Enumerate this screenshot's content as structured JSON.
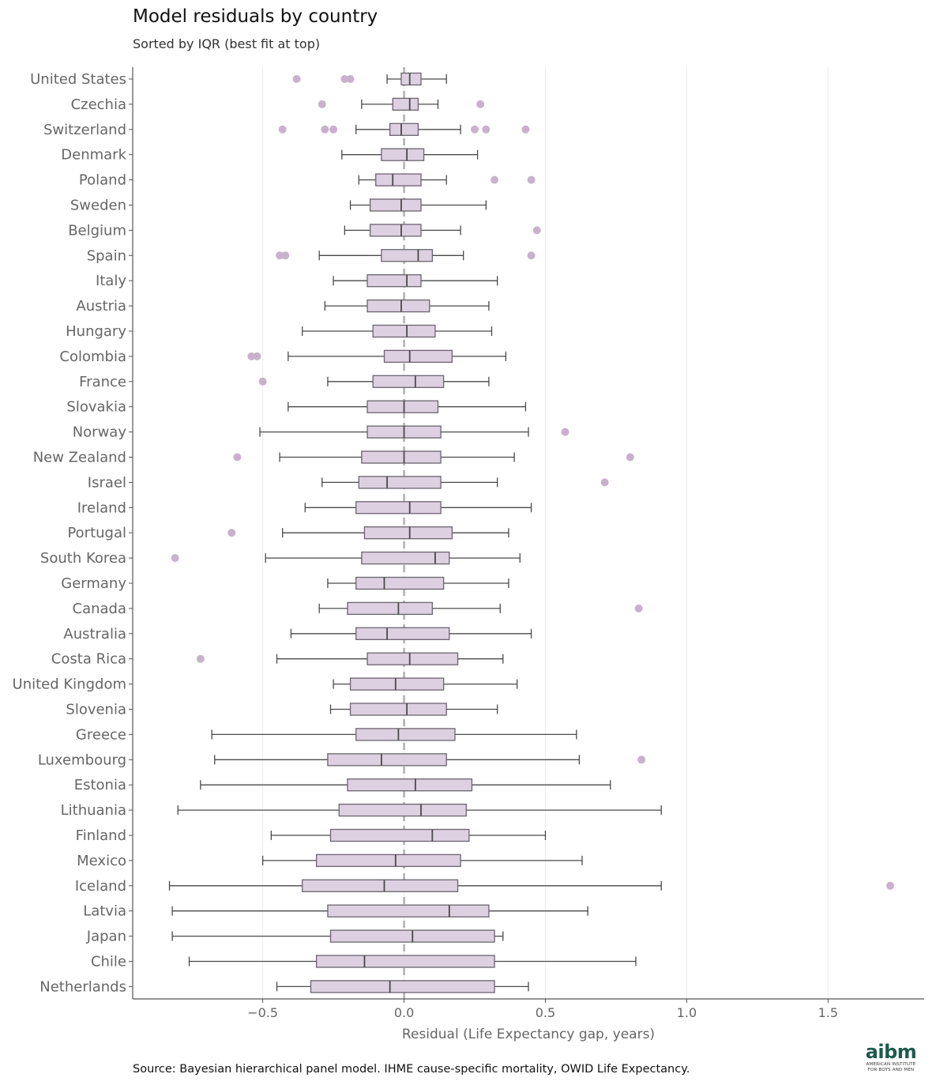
{
  "title": "Model residuals by country",
  "subtitle": "Sorted by IQR (best fit at top)",
  "source": "Source: Bayesian hierarchical panel model. IHME cause-specific mortality, OWID Life Expectancy.",
  "logo": {
    "main": "aibm",
    "line1": "AMERICAN INSTITUTE",
    "line2": "FOR BOYS AND MEN"
  },
  "colors": {
    "box_fill": "#ddd0e0",
    "box_stroke": "#6b6470",
    "outlier": "#c9b1cd",
    "zero_line": "#b0b0b0",
    "grid": "#ececec",
    "axis": "#555555",
    "label": "#666666"
  },
  "chart_data": {
    "type": "box",
    "orientation": "horizontal",
    "xlabel": "Residual (Life Expectancy gap, years)",
    "xlim": [
      -0.96,
      1.84
    ],
    "xticks": [
      -0.5,
      0.0,
      0.5,
      1.0,
      1.5
    ],
    "xtick_labels": [
      "−0.5",
      "0.0",
      "0.5",
      "1.0",
      "1.5"
    ],
    "reference_line": 0,
    "grid": "vertical",
    "series": [
      {
        "country": "United States",
        "whisker_low": -0.06,
        "q1": -0.01,
        "median": 0.02,
        "q3": 0.06,
        "whisker_high": 0.15,
        "outliers": [
          -0.38,
          -0.21,
          -0.19
        ]
      },
      {
        "country": "Czechia",
        "whisker_low": -0.15,
        "q1": -0.04,
        "median": 0.02,
        "q3": 0.05,
        "whisker_high": 0.12,
        "outliers": [
          -0.29,
          0.27
        ]
      },
      {
        "country": "Switzerland",
        "whisker_low": -0.17,
        "q1": -0.05,
        "median": -0.01,
        "q3": 0.05,
        "whisker_high": 0.2,
        "outliers": [
          -0.43,
          -0.28,
          -0.25,
          0.25,
          0.29,
          0.43
        ]
      },
      {
        "country": "Denmark",
        "whisker_low": -0.22,
        "q1": -0.08,
        "median": 0.01,
        "q3": 0.07,
        "whisker_high": 0.26,
        "outliers": []
      },
      {
        "country": "Poland",
        "whisker_low": -0.16,
        "q1": -0.1,
        "median": -0.04,
        "q3": 0.06,
        "whisker_high": 0.15,
        "outliers": [
          0.32,
          0.45
        ]
      },
      {
        "country": "Sweden",
        "whisker_low": -0.19,
        "q1": -0.12,
        "median": -0.01,
        "q3": 0.06,
        "whisker_high": 0.29,
        "outliers": []
      },
      {
        "country": "Belgium",
        "whisker_low": -0.21,
        "q1": -0.12,
        "median": -0.01,
        "q3": 0.06,
        "whisker_high": 0.2,
        "outliers": [
          0.47
        ]
      },
      {
        "country": "Spain",
        "whisker_low": -0.3,
        "q1": -0.08,
        "median": 0.05,
        "q3": 0.1,
        "whisker_high": 0.21,
        "outliers": [
          -0.44,
          -0.42,
          0.45
        ]
      },
      {
        "country": "Italy",
        "whisker_low": -0.25,
        "q1": -0.13,
        "median": 0.01,
        "q3": 0.06,
        "whisker_high": 0.33,
        "outliers": []
      },
      {
        "country": "Austria",
        "whisker_low": -0.28,
        "q1": -0.13,
        "median": -0.01,
        "q3": 0.09,
        "whisker_high": 0.3,
        "outliers": []
      },
      {
        "country": "Hungary",
        "whisker_low": -0.36,
        "q1": -0.11,
        "median": 0.01,
        "q3": 0.11,
        "whisker_high": 0.31,
        "outliers": []
      },
      {
        "country": "Colombia",
        "whisker_low": -0.41,
        "q1": -0.07,
        "median": 0.02,
        "q3": 0.17,
        "whisker_high": 0.36,
        "outliers": [
          -0.54,
          -0.52
        ]
      },
      {
        "country": "France",
        "whisker_low": -0.27,
        "q1": -0.11,
        "median": 0.04,
        "q3": 0.14,
        "whisker_high": 0.3,
        "outliers": [
          -0.5
        ]
      },
      {
        "country": "Slovakia",
        "whisker_low": -0.41,
        "q1": -0.13,
        "median": 0.0,
        "q3": 0.12,
        "whisker_high": 0.43,
        "outliers": []
      },
      {
        "country": "Norway",
        "whisker_low": -0.51,
        "q1": -0.13,
        "median": 0.0,
        "q3": 0.13,
        "whisker_high": 0.44,
        "outliers": [
          0.57
        ]
      },
      {
        "country": "New Zealand",
        "whisker_low": -0.44,
        "q1": -0.15,
        "median": 0.0,
        "q3": 0.13,
        "whisker_high": 0.39,
        "outliers": [
          -0.59,
          0.8
        ]
      },
      {
        "country": "Israel",
        "whisker_low": -0.29,
        "q1": -0.16,
        "median": -0.06,
        "q3": 0.13,
        "whisker_high": 0.33,
        "outliers": [
          0.71
        ]
      },
      {
        "country": "Ireland",
        "whisker_low": -0.35,
        "q1": -0.17,
        "median": 0.02,
        "q3": 0.13,
        "whisker_high": 0.45,
        "outliers": []
      },
      {
        "country": "Portugal",
        "whisker_low": -0.43,
        "q1": -0.14,
        "median": 0.02,
        "q3": 0.17,
        "whisker_high": 0.37,
        "outliers": [
          -0.61
        ]
      },
      {
        "country": "South Korea",
        "whisker_low": -0.49,
        "q1": -0.15,
        "median": 0.11,
        "q3": 0.16,
        "whisker_high": 0.41,
        "outliers": [
          -0.81
        ]
      },
      {
        "country": "Germany",
        "whisker_low": -0.27,
        "q1": -0.17,
        "median": -0.07,
        "q3": 0.14,
        "whisker_high": 0.37,
        "outliers": []
      },
      {
        "country": "Canada",
        "whisker_low": -0.3,
        "q1": -0.2,
        "median": -0.02,
        "q3": 0.1,
        "whisker_high": 0.34,
        "outliers": [
          0.83
        ]
      },
      {
        "country": "Australia",
        "whisker_low": -0.4,
        "q1": -0.17,
        "median": -0.06,
        "q3": 0.16,
        "whisker_high": 0.45,
        "outliers": []
      },
      {
        "country": "Costa Rica",
        "whisker_low": -0.45,
        "q1": -0.13,
        "median": 0.02,
        "q3": 0.19,
        "whisker_high": 0.35,
        "outliers": [
          -0.72
        ]
      },
      {
        "country": "United Kingdom",
        "whisker_low": -0.25,
        "q1": -0.19,
        "median": -0.03,
        "q3": 0.14,
        "whisker_high": 0.4,
        "outliers": []
      },
      {
        "country": "Slovenia",
        "whisker_low": -0.26,
        "q1": -0.19,
        "median": 0.01,
        "q3": 0.15,
        "whisker_high": 0.33,
        "outliers": []
      },
      {
        "country": "Greece",
        "whisker_low": -0.68,
        "q1": -0.17,
        "median": -0.02,
        "q3": 0.18,
        "whisker_high": 0.61,
        "outliers": []
      },
      {
        "country": "Luxembourg",
        "whisker_low": -0.67,
        "q1": -0.27,
        "median": -0.08,
        "q3": 0.15,
        "whisker_high": 0.62,
        "outliers": [
          0.84
        ]
      },
      {
        "country": "Estonia",
        "whisker_low": -0.72,
        "q1": -0.2,
        "median": 0.04,
        "q3": 0.24,
        "whisker_high": 0.73,
        "outliers": []
      },
      {
        "country": "Lithuania",
        "whisker_low": -0.8,
        "q1": -0.23,
        "median": 0.06,
        "q3": 0.22,
        "whisker_high": 0.91,
        "outliers": []
      },
      {
        "country": "Finland",
        "whisker_low": -0.47,
        "q1": -0.26,
        "median": 0.1,
        "q3": 0.23,
        "whisker_high": 0.5,
        "outliers": []
      },
      {
        "country": "Mexico",
        "whisker_low": -0.5,
        "q1": -0.31,
        "median": -0.03,
        "q3": 0.2,
        "whisker_high": 0.63,
        "outliers": []
      },
      {
        "country": "Iceland",
        "whisker_low": -0.83,
        "q1": -0.36,
        "median": -0.07,
        "q3": 0.19,
        "whisker_high": 0.91,
        "outliers": [
          1.72
        ]
      },
      {
        "country": "Latvia",
        "whisker_low": -0.82,
        "q1": -0.27,
        "median": 0.16,
        "q3": 0.3,
        "whisker_high": 0.65,
        "outliers": []
      },
      {
        "country": "Japan",
        "whisker_low": -0.82,
        "q1": -0.26,
        "median": 0.03,
        "q3": 0.32,
        "whisker_high": 0.35,
        "outliers": []
      },
      {
        "country": "Chile",
        "whisker_low": -0.76,
        "q1": -0.31,
        "median": -0.14,
        "q3": 0.32,
        "whisker_high": 0.82,
        "outliers": []
      },
      {
        "country": "Netherlands",
        "whisker_low": -0.45,
        "q1": -0.33,
        "median": -0.05,
        "q3": 0.32,
        "whisker_high": 0.44,
        "outliers": []
      }
    ]
  }
}
